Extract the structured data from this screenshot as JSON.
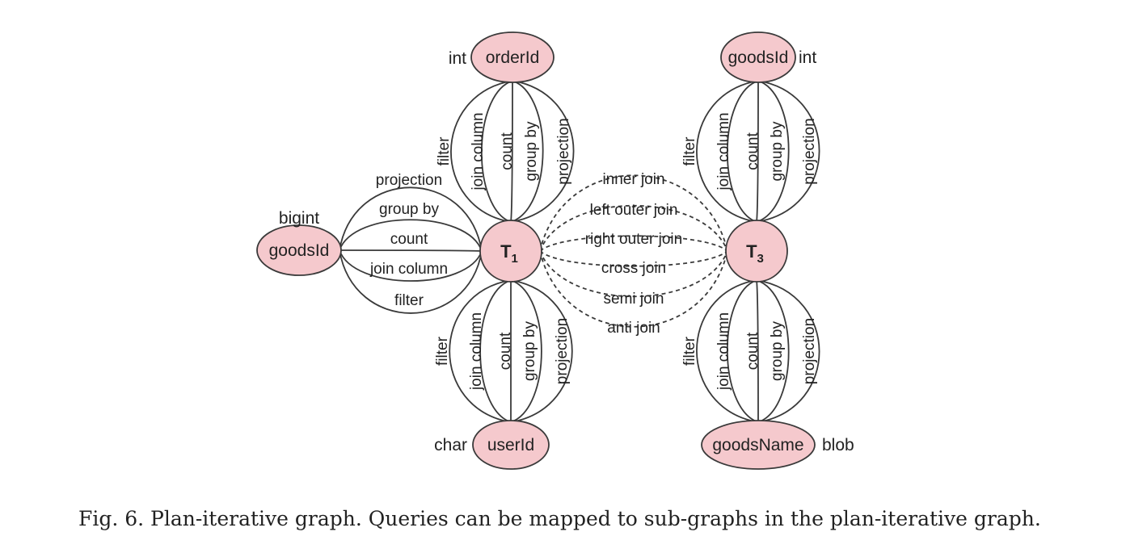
{
  "caption": "Fig. 6.  Plan-iterative graph. Queries can be mapped to sub-graphs in the plan-iterative graph.",
  "colors": {
    "node_fill": "#f5c9cd",
    "stroke": "#3a3a3a"
  },
  "tables": [
    {
      "id": "t1",
      "label": "T",
      "sub": "1"
    },
    {
      "id": "t3",
      "label": "T",
      "sub": "3"
    }
  ],
  "columns": [
    {
      "id": "t1-top",
      "name": "orderId",
      "type": "int"
    },
    {
      "id": "t1-bottom",
      "name": "userId",
      "type": "char"
    },
    {
      "id": "t1-left",
      "name": "goodsId",
      "type": "bigint"
    },
    {
      "id": "t3-top",
      "name": "goodsId",
      "type": "int"
    },
    {
      "id": "t3-bottom",
      "name": "goodsName",
      "type": "blob"
    }
  ],
  "column_edges": [
    "filter",
    "join column",
    "count",
    "group by",
    "projection"
  ],
  "left_edges": [
    "projection",
    "group by",
    "count",
    "join column",
    "filter"
  ],
  "join_edges": [
    "inner join",
    "left outer join",
    "right outer join",
    "cross join",
    "semi join",
    "anti join"
  ]
}
